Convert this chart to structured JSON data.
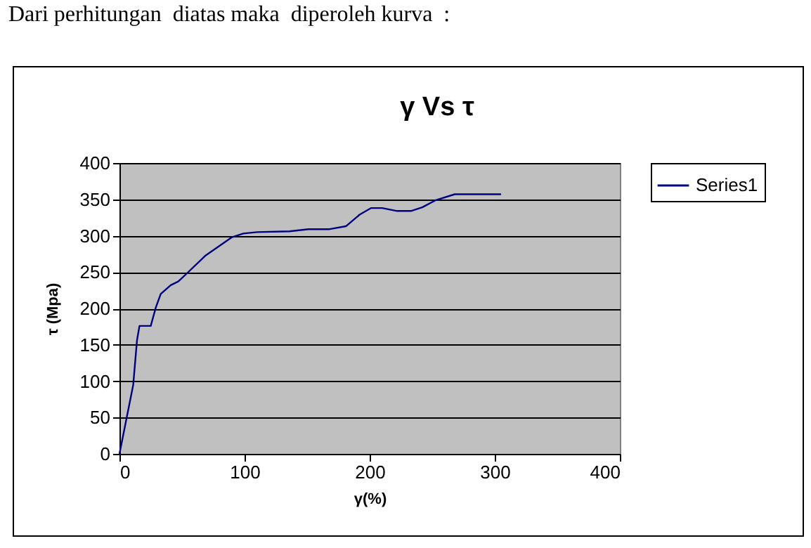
{
  "chart_data": {
    "type": "line",
    "title": "γ Vs τ",
    "xlabel": "γ(%)",
    "ylabel": "τ (Mpa)",
    "annotations": [
      "Dari perhitungan  diatas maka  diperoleh kurva  :"
    ],
    "x": [
      0,
      11,
      14,
      16,
      25,
      29,
      33,
      41,
      47,
      55,
      69,
      90,
      99,
      110,
      136,
      151,
      168,
      181,
      192,
      201,
      210,
      222,
      233,
      242,
      253,
      268,
      305
    ],
    "series": [
      {
        "name": "Series1",
        "color": "#000080",
        "values": [
          0,
          95,
          156,
          176,
          176,
          201,
          220,
          232,
          237,
          250,
          273,
          298,
          303,
          305,
          306,
          309,
          309,
          313,
          329,
          338,
          338,
          334,
          334,
          339,
          349,
          357,
          357
        ]
      }
    ],
    "xlim": [
      0,
      400
    ],
    "xticks": [
      0,
      100,
      200,
      300,
      400
    ],
    "ylim": [
      0,
      400
    ],
    "yticks": [
      0,
      50,
      100,
      150,
      200,
      250,
      300,
      350,
      400
    ],
    "grid": "y",
    "legend": "right",
    "marker": "none",
    "line_style": "solid"
  }
}
